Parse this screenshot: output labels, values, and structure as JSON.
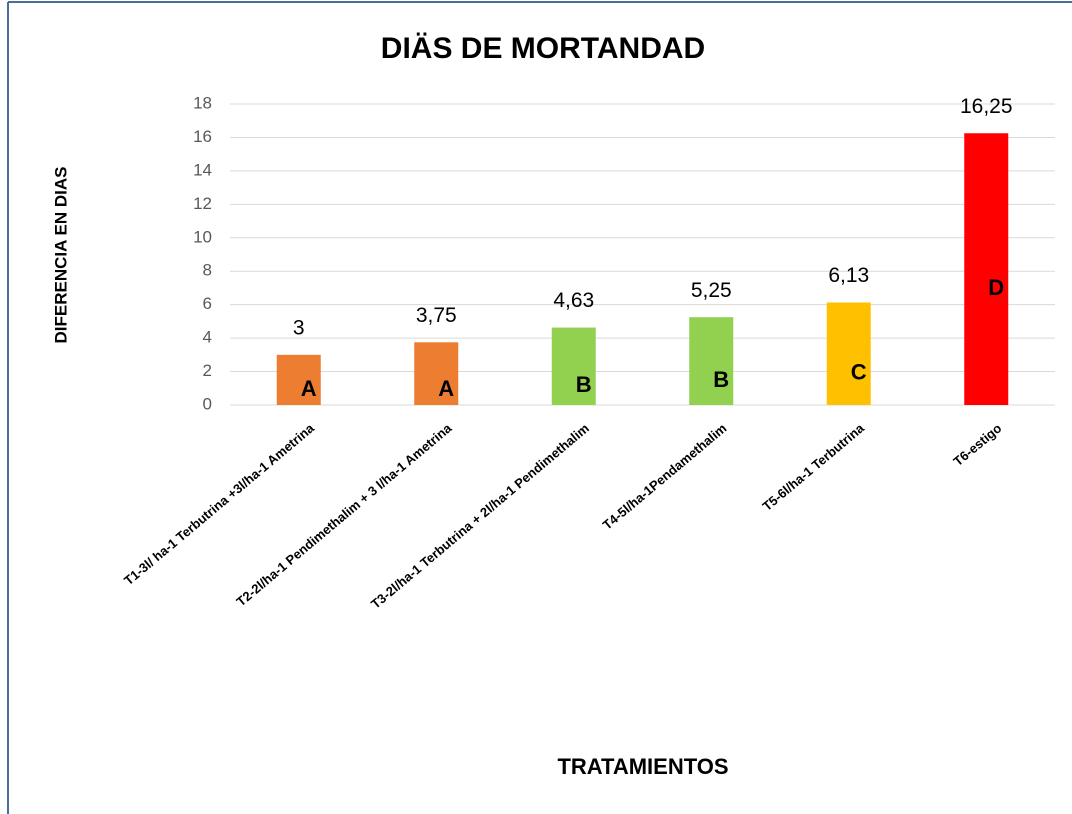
{
  "chart_data": {
    "type": "bar",
    "title": "DIÄS DE MORTANDAD",
    "x_label": "TRATAMIENTOS",
    "y_label": "DIFERENCIA EN DIAS",
    "categories": [
      "T1-3l/ ha-1  Terbutrina +3l/ha-1  Ametrina",
      "T2-2l/ha-1 Pendimethalim + 3 l/ha-1 Ametrina",
      "T3-2l/ha-1 Terbutrina + 2l/ha-1 Pendimethalim",
      "T4-5l/ha-1Pendamethalim",
      "T5-6l/ha-1 Terbutrina",
      "T6-estigo"
    ],
    "values": [
      3,
      3.75,
      4.63,
      5.25,
      6.13,
      16.25
    ],
    "value_labels": [
      "3",
      "3,75",
      "4,63",
      "5,25",
      "6,13",
      "16,25"
    ],
    "groups": [
      "A",
      "A",
      "B",
      "B",
      "C",
      "D"
    ],
    "colors": [
      "#ed7d31",
      "#ed7d31",
      "#92d050",
      "#92d050",
      "#ffc000",
      "#ff0000"
    ],
    "ylim": [
      0,
      18
    ],
    "yticks": [
      0,
      2,
      4,
      6,
      8,
      10,
      12,
      14,
      16,
      18
    ],
    "grid": true
  }
}
